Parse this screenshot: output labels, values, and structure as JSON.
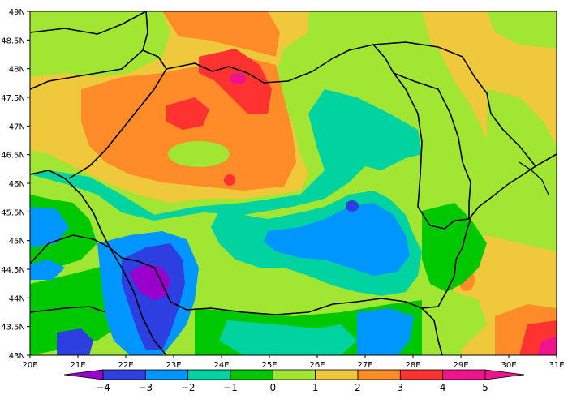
{
  "map": {
    "lat_ticks": [
      "49N",
      "48.5N",
      "48N",
      "47.5N",
      "47N",
      "46.5N",
      "46N",
      "45.5N",
      "45N",
      "44.5N",
      "44N",
      "43.5N",
      "43N"
    ],
    "lon_ticks": [
      "20E",
      "21E",
      "22E",
      "23E",
      "24E",
      "25E",
      "26E",
      "27E",
      "28E",
      "29E",
      "30E",
      "31E"
    ],
    "extent": {
      "lon": [
        20,
        31
      ],
      "lat": [
        43,
        49
      ]
    }
  },
  "colorbar": {
    "labels": [
      "−4",
      "−3",
      "−2",
      "−1",
      "0",
      "1",
      "2",
      "3",
      "4",
      "5"
    ],
    "colors": [
      "#9900cc",
      "#2d3fe0",
      "#0096ff",
      "#00d2a0",
      "#00c800",
      "#a0e632",
      "#f0c83c",
      "#ff8c28",
      "#ff3232",
      "#f0148c"
    ]
  },
  "palette": {
    "magenta": "#f0148c",
    "red": "#ff3232",
    "dark_orange": "#ff8c28",
    "orange": "#f0c83c",
    "yellow_green": "#a0e632",
    "green": "#00c800",
    "aqua_green": "#00d2a0",
    "light_blue": "#0096ff",
    "blue": "#2d3fe0",
    "purple": "#9900cc"
  }
}
